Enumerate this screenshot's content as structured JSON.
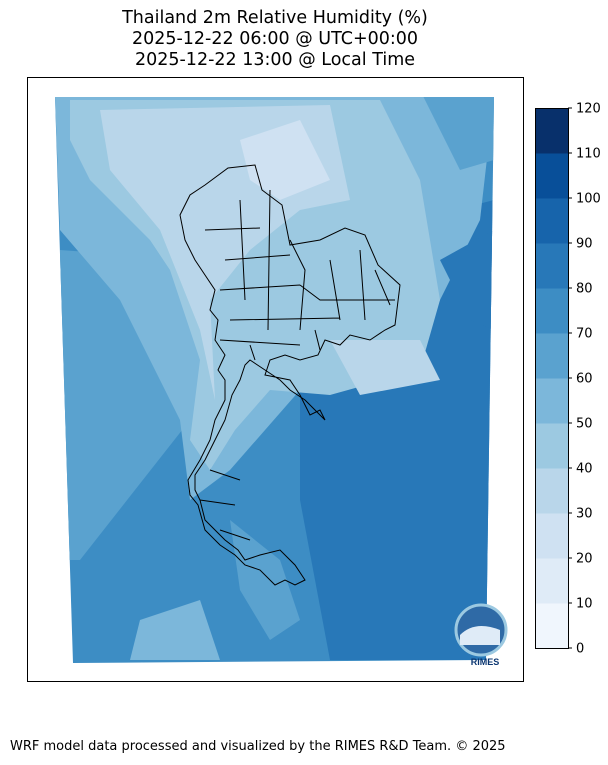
{
  "title": {
    "line1": "Thailand 2m Relative Humidity (%)",
    "line2": "2025-12-22 06:00 @ UTC+00:00",
    "line3": "2025-12-22 13:00 @ Local Time"
  },
  "colorbar": {
    "ticks": [
      "0",
      "10",
      "20",
      "30",
      "40",
      "50",
      "60",
      "70",
      "80",
      "90",
      "100",
      "110",
      "120"
    ],
    "colors": [
      "#f0f6fd",
      "#dfebf7",
      "#cfe1f2",
      "#b9d6ea",
      "#9cc9e1",
      "#7cb7da",
      "#5aa2cf",
      "#3d8dc4",
      "#2878b8",
      "#1764ab",
      "#084f99",
      "#08306b"
    ]
  },
  "logo": {
    "text": "RIMES"
  },
  "footer": "WRF model data processed and visualized by the RIMES R&D Team. © 2025"
}
